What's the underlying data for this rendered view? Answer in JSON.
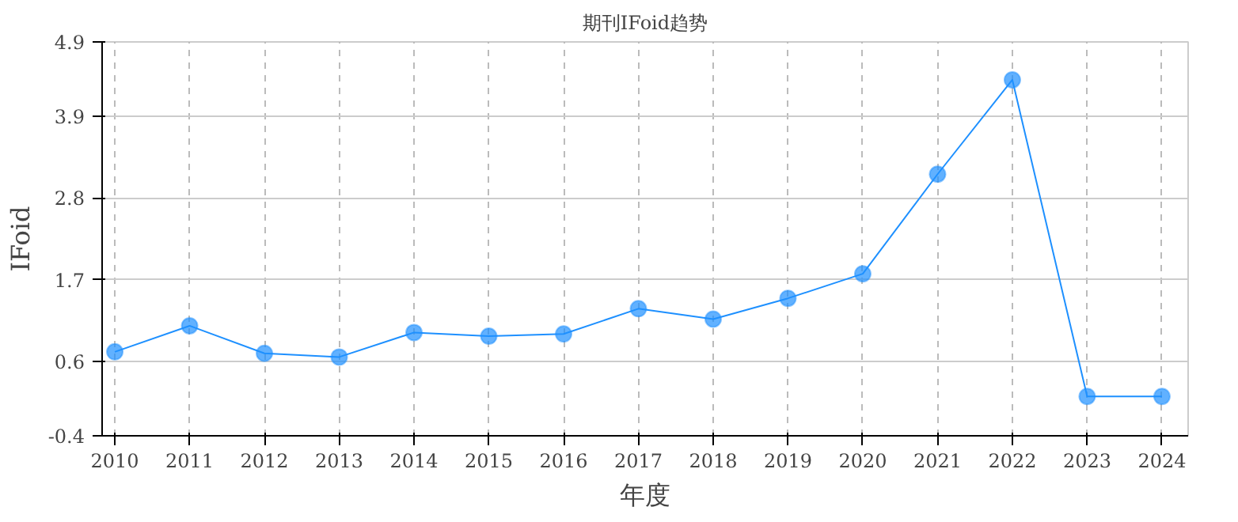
{
  "chart_data": {
    "type": "line",
    "title": "期刊IFoid趋势",
    "xlabel": "年度",
    "ylabel": "IFoid",
    "x": [
      2010,
      2011,
      2012,
      2013,
      2014,
      2015,
      2016,
      2017,
      2018,
      2019,
      2020,
      2021,
      2022,
      2023,
      2024
    ],
    "series": [
      {
        "color": "#1e90ff",
        "values": [
          0.73,
          1.08,
          0.71,
          0.66,
          0.99,
          0.94,
          0.97,
          1.31,
          1.17,
          1.45,
          1.78,
          3.12,
          4.39,
          0.13,
          0.13
        ]
      }
    ],
    "xlim": [
      2009.83,
      2024.35
    ],
    "xticks": [
      2010,
      2011,
      2012,
      2013,
      2014,
      2015,
      2016,
      2017,
      2018,
      2019,
      2020,
      2021,
      2022,
      2023,
      2024
    ],
    "ylim": [
      -0.4,
      4.9
    ],
    "yticks": [
      -0.4,
      0.6,
      1.7,
      2.8,
      3.9,
      4.9
    ],
    "grid": true,
    "marker": "circle",
    "line_style": "solid"
  }
}
